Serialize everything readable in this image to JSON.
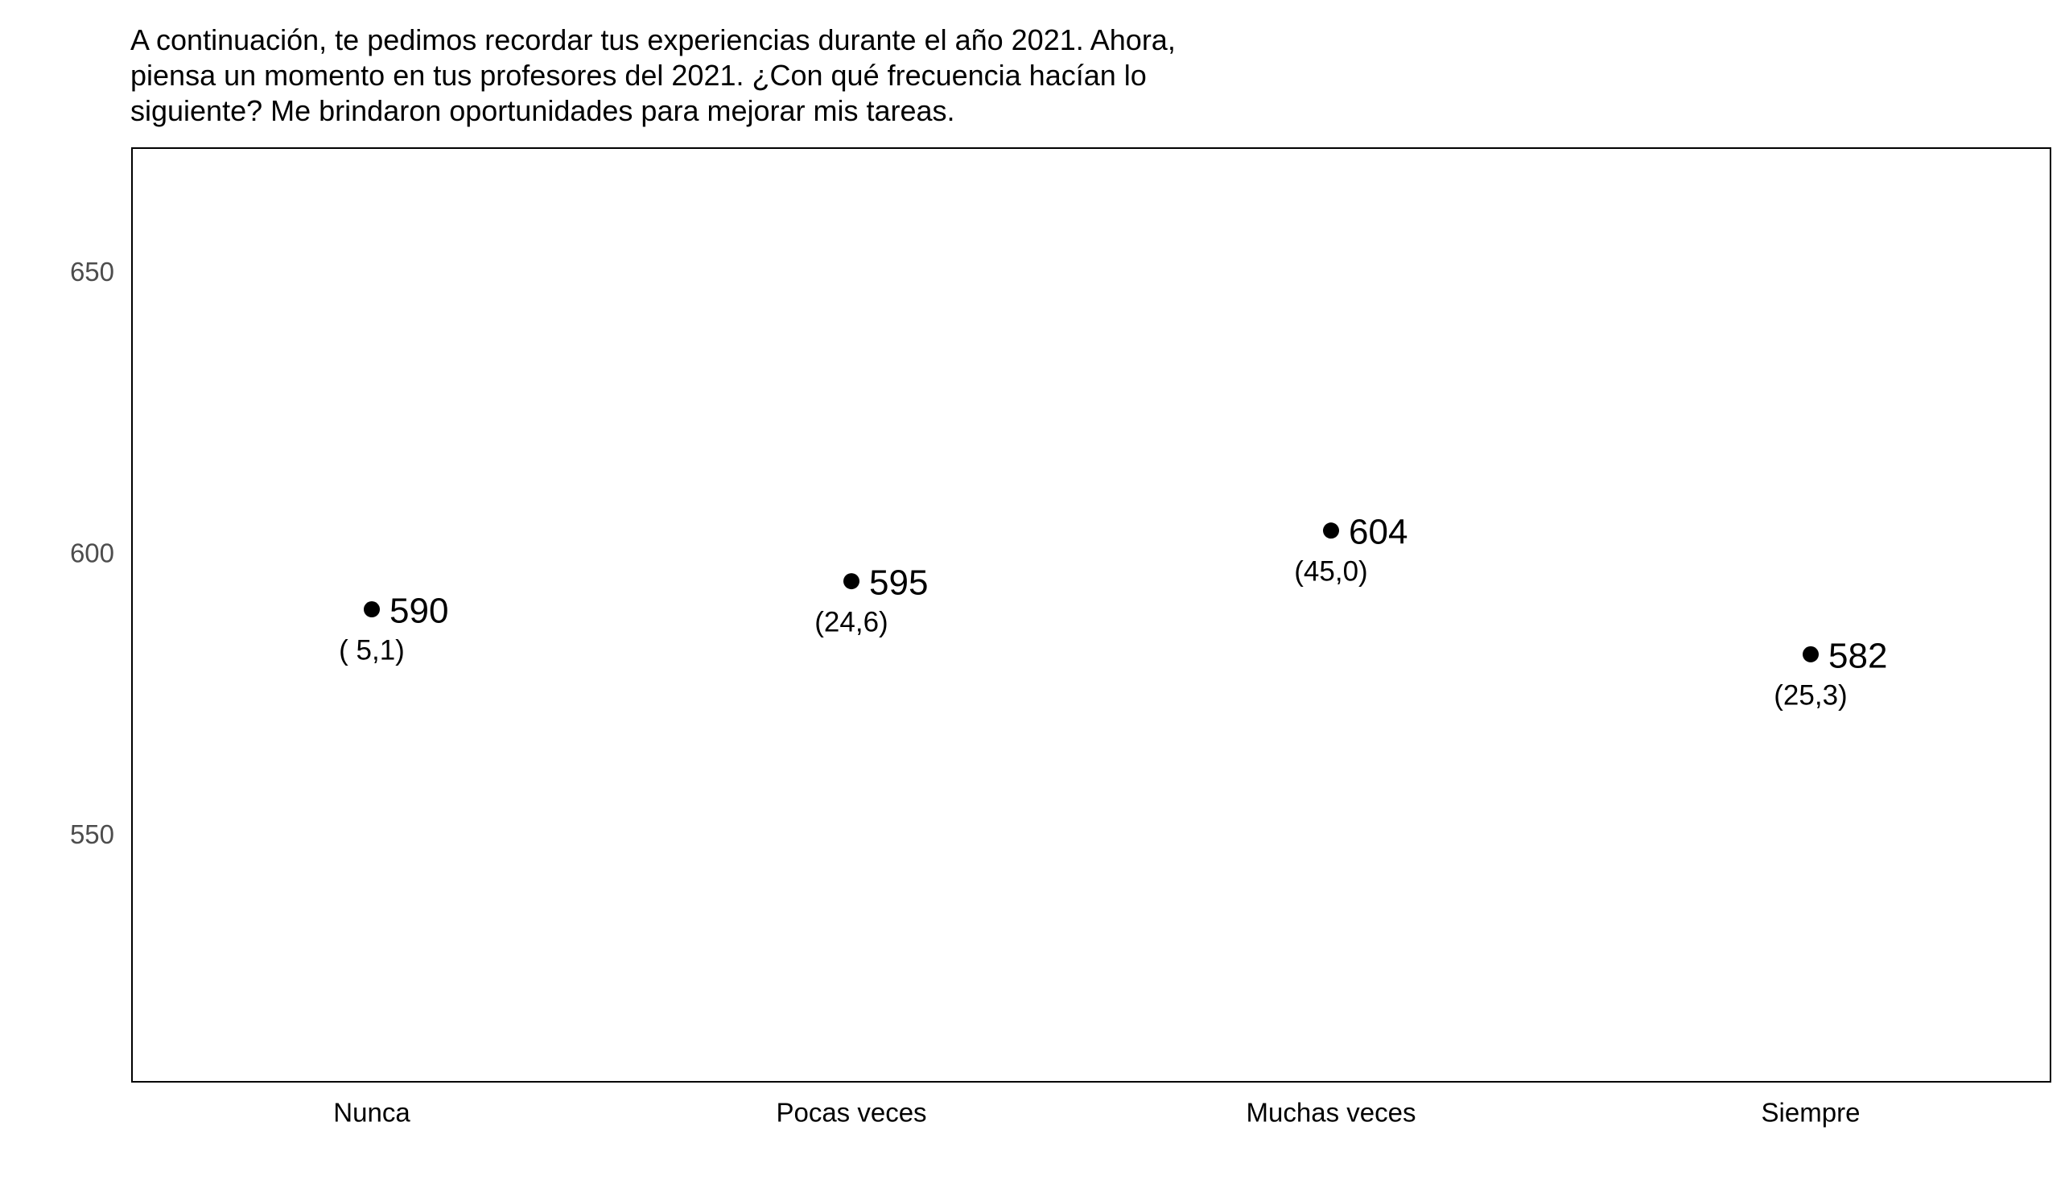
{
  "chart_data": {
    "type": "scatter",
    "title_lines": [
      "A continuación, te pedimos recordar tus experiencias durante el año 2021. Ahora,",
      "piensa un momento en tus profesores del 2021. ¿Con qué frecuencia hacían lo",
      "siguiente? Me brindaron oportunidades para mejorar mis tareas."
    ],
    "categories": [
      "Nunca",
      "Pocas veces",
      "Muchas veces",
      "Siempre"
    ],
    "values": [
      590,
      595,
      604,
      582
    ],
    "value_labels": [
      "590",
      "595",
      "604",
      "582"
    ],
    "se_labels": [
      "( 5,1)",
      "(24,6)",
      "(45,0)",
      "(25,3)"
    ],
    "y_ticks": [
      550,
      600,
      650
    ],
    "y_tick_labels": [
      "550",
      "600",
      "650"
    ],
    "ylim": [
      506,
      672
    ],
    "xlabel": "",
    "ylabel": "",
    "grid": false,
    "legend": "none",
    "colors": {
      "point": "#000000",
      "frame": "#000000",
      "y_tick_text": "#4d4d4d"
    }
  }
}
